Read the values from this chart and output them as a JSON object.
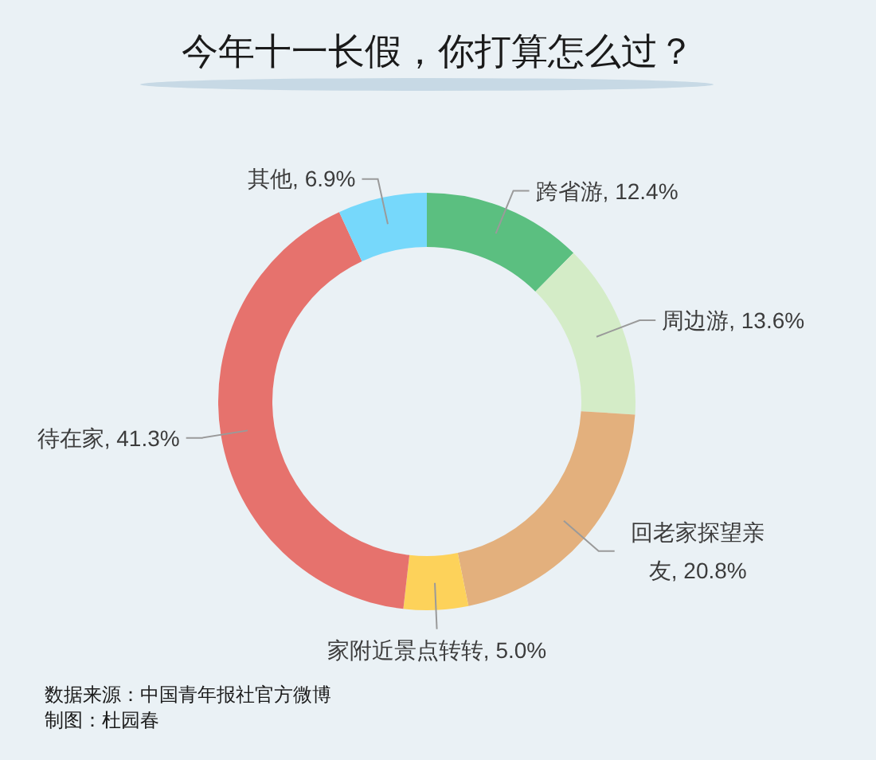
{
  "chart_data": {
    "type": "donut",
    "title": "今年十一长假，你打算怎么过？",
    "categories": [
      "跨省游",
      "周边游",
      "回老家探望亲友",
      "家附近景点转转",
      "待在家",
      "其他"
    ],
    "values": [
      12.4,
      13.6,
      20.8,
      5.0,
      41.3,
      6.9
    ],
    "colors": [
      "#5bbf80",
      "#d4ecc7",
      "#e3b07d",
      "#fdd25a",
      "#e6726d",
      "#76d8fb"
    ],
    "value_labels": [
      "12.4%",
      "13.6%",
      "20.8%",
      "5.0%",
      "41.3%",
      "6.9%"
    ],
    "annotations": [
      "数据来源：中国青年报社官方微博",
      "制图：杜园春"
    ]
  }
}
